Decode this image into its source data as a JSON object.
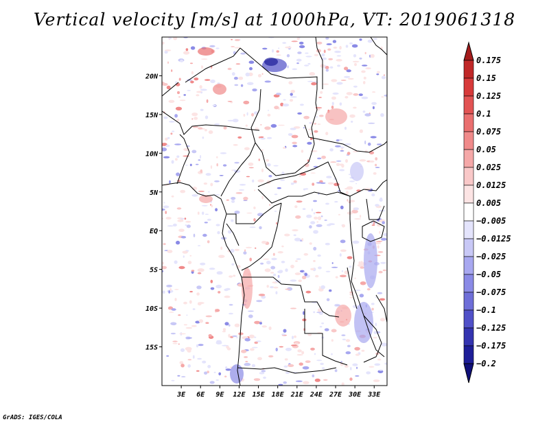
{
  "title": "Vertical velocity [m/s] at 1000hPa, VT: 2019061318",
  "footer": "GrADS: IGES/COLA",
  "map": {
    "lon_range": [
      0,
      35
    ],
    "lat_range": [
      -20,
      25
    ],
    "lon_ticks": [
      "3E",
      "6E",
      "9E",
      "12E",
      "15E",
      "18E",
      "21E",
      "24E",
      "27E",
      "30E",
      "33E"
    ],
    "lat_ticks": [
      "20N",
      "15N",
      "10N",
      "5N",
      "EQ",
      "5S",
      "10S",
      "15S"
    ]
  },
  "colorbar": {
    "levels": [
      "0.175",
      "0.15",
      "0.125",
      "0.1",
      "0.075",
      "0.05",
      "0.025",
      "0.0125",
      "0.005",
      "−0.005",
      "−0.0125",
      "−0.025",
      "−0.05",
      "−0.075",
      "−0.1",
      "−0.125",
      "−0.175",
      "−0.2"
    ],
    "colors": [
      "#a51c1c",
      "#c02828",
      "#d73a3a",
      "#e25353",
      "#ea6f6f",
      "#f08a8a",
      "#f5a8a8",
      "#f9c8c8",
      "#fce4e4",
      "#ffffff",
      "#e4e4fc",
      "#c8c8f6",
      "#a8a8f0",
      "#8a8ae6",
      "#6e6ed8",
      "#5050c8",
      "#3434b0",
      "#1e1e98",
      "#10107a"
    ]
  }
}
